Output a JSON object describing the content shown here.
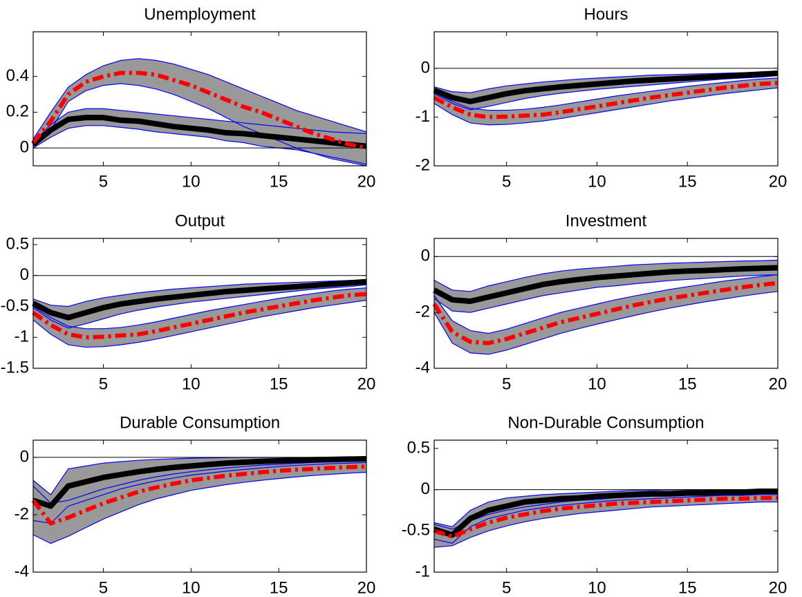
{
  "chart_data": [
    {
      "type": "line",
      "title": "Unemployment",
      "x": [
        1,
        2,
        3,
        4,
        5,
        6,
        7,
        8,
        9,
        10,
        11,
        12,
        13,
        14,
        15,
        16,
        17,
        18,
        19,
        20
      ],
      "xlim": [
        1,
        20
      ],
      "xticks": [
        5,
        10,
        15,
        20
      ],
      "ylim": [
        -0.1,
        0.65
      ],
      "yticks": [
        0,
        0.2,
        0.4
      ],
      "zero_line": true,
      "band_color": "#999999",
      "band_edge_color": "#0000ff",
      "series": [
        {
          "color": "#000000",
          "line_style": "solid",
          "values": [
            0.02,
            0.1,
            0.16,
            0.17,
            0.17,
            0.155,
            0.15,
            0.135,
            0.12,
            0.11,
            0.1,
            0.085,
            0.08,
            0.07,
            0.06,
            0.05,
            0.04,
            0.03,
            0.02,
            0.01
          ],
          "upper": [
            0.03,
            0.13,
            0.2,
            0.22,
            0.22,
            0.21,
            0.2,
            0.19,
            0.18,
            0.17,
            0.16,
            0.15,
            0.14,
            0.13,
            0.12,
            0.11,
            0.1,
            0.09,
            0.085,
            0.08
          ],
          "lower": [
            0,
            0.06,
            0.11,
            0.125,
            0.125,
            0.115,
            0.105,
            0.09,
            0.08,
            0.07,
            0.06,
            0.04,
            0.03,
            0.01,
            0,
            -0.01,
            -0.03,
            -0.05,
            -0.07,
            -0.09
          ]
        },
        {
          "color": "#ff0000",
          "line_style": "dashdot",
          "values": [
            0.03,
            0.15,
            0.3,
            0.37,
            0.4,
            0.42,
            0.42,
            0.41,
            0.38,
            0.35,
            0.31,
            0.27,
            0.23,
            0.2,
            0.16,
            0.12,
            0.08,
            0.05,
            0.02,
            0
          ],
          "upper": [
            0.05,
            0.2,
            0.34,
            0.41,
            0.46,
            0.49,
            0.5,
            0.49,
            0.47,
            0.44,
            0.41,
            0.37,
            0.33,
            0.29,
            0.25,
            0.21,
            0.18,
            0.15,
            0.12,
            0.09
          ],
          "lower": [
            0.01,
            0.1,
            0.26,
            0.32,
            0.35,
            0.36,
            0.35,
            0.33,
            0.3,
            0.26,
            0.22,
            0.17,
            0.12,
            0.08,
            0.04,
            0,
            -0.03,
            -0.06,
            -0.08,
            -0.1
          ]
        }
      ]
    },
    {
      "type": "line",
      "title": "Hours",
      "x": [
        1,
        2,
        3,
        4,
        5,
        6,
        7,
        8,
        9,
        10,
        11,
        12,
        13,
        14,
        15,
        16,
        17,
        18,
        19,
        20
      ],
      "xlim": [
        1,
        20
      ],
      "xticks": [
        5,
        10,
        15,
        20
      ],
      "ylim": [
        -2,
        0.75
      ],
      "yticks": [
        -2,
        -1,
        0
      ],
      "zero_line": true,
      "band_color": "#999999",
      "band_edge_color": "#0000ff",
      "series": [
        {
          "color": "#000000",
          "line_style": "solid",
          "values": [
            -0.45,
            -0.6,
            -0.68,
            -0.6,
            -0.52,
            -0.46,
            -0.42,
            -0.38,
            -0.35,
            -0.32,
            -0.29,
            -0.26,
            -0.24,
            -0.22,
            -0.2,
            -0.18,
            -0.16,
            -0.14,
            -0.12,
            -0.1
          ],
          "upper": [
            -0.38,
            -0.48,
            -0.5,
            -0.42,
            -0.36,
            -0.32,
            -0.28,
            -0.25,
            -0.22,
            -0.2,
            -0.18,
            -0.16,
            -0.14,
            -0.13,
            -0.12,
            -0.11,
            -0.1,
            -0.09,
            -0.08,
            -0.07
          ],
          "lower": [
            -0.52,
            -0.72,
            -0.85,
            -0.78,
            -0.7,
            -0.62,
            -0.56,
            -0.51,
            -0.47,
            -0.43,
            -0.4,
            -0.37,
            -0.34,
            -0.31,
            -0.28,
            -0.25,
            -0.22,
            -0.2,
            -0.18,
            -0.15
          ]
        },
        {
          "color": "#ff0000",
          "line_style": "dashdot",
          "values": [
            -0.6,
            -0.8,
            -0.95,
            -1.0,
            -0.99,
            -0.97,
            -0.95,
            -0.9,
            -0.84,
            -0.78,
            -0.72,
            -0.66,
            -0.6,
            -0.55,
            -0.5,
            -0.45,
            -0.4,
            -0.36,
            -0.32,
            -0.3
          ],
          "upper": [
            -0.5,
            -0.68,
            -0.82,
            -0.86,
            -0.86,
            -0.84,
            -0.8,
            -0.75,
            -0.69,
            -0.63,
            -0.57,
            -0.52,
            -0.47,
            -0.42,
            -0.37,
            -0.33,
            -0.29,
            -0.25,
            -0.22,
            -0.2
          ],
          "lower": [
            -0.72,
            -0.95,
            -1.12,
            -1.16,
            -1.15,
            -1.12,
            -1.08,
            -1.03,
            -0.97,
            -0.91,
            -0.85,
            -0.79,
            -0.73,
            -0.67,
            -0.62,
            -0.57,
            -0.52,
            -0.48,
            -0.44,
            -0.4
          ]
        }
      ]
    },
    {
      "type": "line",
      "title": "Output",
      "x": [
        1,
        2,
        3,
        4,
        5,
        6,
        7,
        8,
        9,
        10,
        11,
        12,
        13,
        14,
        15,
        16,
        17,
        18,
        19,
        20
      ],
      "xlim": [
        1,
        20
      ],
      "xticks": [
        5,
        10,
        15,
        20
      ],
      "ylim": [
        -1.5,
        0.6
      ],
      "yticks": [
        -1.5,
        -1,
        -0.5,
        0,
        0.5
      ],
      "zero_line": true,
      "band_color": "#999999",
      "band_edge_color": "#0000ff",
      "series": [
        {
          "color": "#000000",
          "line_style": "solid",
          "values": [
            -0.45,
            -0.6,
            -0.68,
            -0.6,
            -0.52,
            -0.46,
            -0.42,
            -0.38,
            -0.35,
            -0.32,
            -0.29,
            -0.26,
            -0.24,
            -0.22,
            -0.2,
            -0.18,
            -0.16,
            -0.14,
            -0.12,
            -0.1
          ],
          "upper": [
            -0.38,
            -0.48,
            -0.5,
            -0.42,
            -0.36,
            -0.32,
            -0.28,
            -0.25,
            -0.22,
            -0.2,
            -0.18,
            -0.16,
            -0.14,
            -0.13,
            -0.12,
            -0.11,
            -0.1,
            -0.09,
            -0.08,
            -0.07
          ],
          "lower": [
            -0.52,
            -0.72,
            -0.85,
            -0.78,
            -0.7,
            -0.62,
            -0.56,
            -0.51,
            -0.47,
            -0.43,
            -0.4,
            -0.37,
            -0.34,
            -0.31,
            -0.28,
            -0.25,
            -0.22,
            -0.2,
            -0.18,
            -0.15
          ]
        },
        {
          "color": "#ff0000",
          "line_style": "dashdot",
          "values": [
            -0.6,
            -0.8,
            -0.95,
            -1.0,
            -0.99,
            -0.97,
            -0.95,
            -0.9,
            -0.84,
            -0.78,
            -0.72,
            -0.66,
            -0.6,
            -0.55,
            -0.5,
            -0.45,
            -0.4,
            -0.36,
            -0.32,
            -0.3
          ],
          "upper": [
            -0.5,
            -0.68,
            -0.82,
            -0.86,
            -0.86,
            -0.84,
            -0.8,
            -0.75,
            -0.69,
            -0.63,
            -0.57,
            -0.52,
            -0.47,
            -0.42,
            -0.37,
            -0.33,
            -0.29,
            -0.25,
            -0.22,
            -0.2
          ],
          "lower": [
            -0.72,
            -0.95,
            -1.12,
            -1.16,
            -1.15,
            -1.12,
            -1.08,
            -1.03,
            -0.97,
            -0.91,
            -0.85,
            -0.79,
            -0.73,
            -0.67,
            -0.62,
            -0.57,
            -0.52,
            -0.48,
            -0.44,
            -0.4
          ]
        }
      ]
    },
    {
      "type": "line",
      "title": "Investment",
      "x": [
        1,
        2,
        3,
        4,
        5,
        6,
        7,
        8,
        9,
        10,
        11,
        12,
        13,
        14,
        15,
        16,
        17,
        18,
        19,
        20
      ],
      "xlim": [
        1,
        20
      ],
      "xticks": [
        5,
        10,
        15,
        20
      ],
      "ylim": [
        -4,
        0.65
      ],
      "yticks": [
        -4,
        -2,
        0
      ],
      "zero_line": true,
      "band_color": "#999999",
      "band_edge_color": "#0000ff",
      "series": [
        {
          "color": "#000000",
          "line_style": "solid",
          "values": [
            -1.2,
            -1.55,
            -1.6,
            -1.45,
            -1.3,
            -1.15,
            -1.0,
            -0.9,
            -0.82,
            -0.75,
            -0.7,
            -0.65,
            -0.6,
            -0.55,
            -0.52,
            -0.5,
            -0.47,
            -0.44,
            -0.42,
            -0.4
          ],
          "upper": [
            -0.85,
            -1.2,
            -1.25,
            -1.05,
            -0.9,
            -0.75,
            -0.62,
            -0.52,
            -0.45,
            -0.4,
            -0.35,
            -0.3,
            -0.27,
            -0.24,
            -0.22,
            -0.2,
            -0.18,
            -0.16,
            -0.15,
            -0.13
          ],
          "lower": [
            -1.5,
            -1.95,
            -2.0,
            -1.85,
            -1.7,
            -1.55,
            -1.4,
            -1.3,
            -1.2,
            -1.1,
            -1.05,
            -0.98,
            -0.92,
            -0.86,
            -0.82,
            -0.78,
            -0.74,
            -0.7,
            -0.67,
            -0.65
          ]
        },
        {
          "color": "#ff0000",
          "line_style": "dashdot",
          "values": [
            -1.7,
            -2.7,
            -3.05,
            -3.1,
            -2.95,
            -2.75,
            -2.55,
            -2.35,
            -2.2,
            -2.05,
            -1.9,
            -1.75,
            -1.62,
            -1.5,
            -1.4,
            -1.3,
            -1.2,
            -1.1,
            -1.02,
            -0.95
          ],
          "upper": [
            -1.4,
            -2.3,
            -2.65,
            -2.75,
            -2.6,
            -2.4,
            -2.2,
            -2.0,
            -1.85,
            -1.7,
            -1.55,
            -1.42,
            -1.3,
            -1.18,
            -1.08,
            -0.98,
            -0.88,
            -0.8,
            -0.72,
            -0.65
          ],
          "lower": [
            -2.0,
            -3.1,
            -3.45,
            -3.5,
            -3.35,
            -3.15,
            -2.95,
            -2.75,
            -2.58,
            -2.42,
            -2.27,
            -2.12,
            -1.98,
            -1.85,
            -1.73,
            -1.62,
            -1.52,
            -1.42,
            -1.33,
            -1.25
          ]
        }
      ]
    },
    {
      "type": "line",
      "title": "Durable Consumption",
      "x": [
        1,
        2,
        3,
        4,
        5,
        6,
        7,
        8,
        9,
        10,
        11,
        12,
        13,
        14,
        15,
        16,
        17,
        18,
        19,
        20
      ],
      "xlim": [
        1,
        20
      ],
      "xticks": [
        5,
        10,
        15,
        20
      ],
      "ylim": [
        -4,
        0.6
      ],
      "yticks": [
        -4,
        -2,
        0
      ],
      "zero_line": true,
      "band_color": "#999999",
      "band_edge_color": "#0000ff",
      "series": [
        {
          "color": "#000000",
          "line_style": "solid",
          "values": [
            -1.5,
            -1.7,
            -1.0,
            -0.85,
            -0.7,
            -0.6,
            -0.5,
            -0.42,
            -0.35,
            -0.3,
            -0.25,
            -0.2,
            -0.17,
            -0.14,
            -0.12,
            -0.1,
            -0.08,
            -0.07,
            -0.06,
            -0.05
          ],
          "upper": [
            -0.8,
            -1.3,
            -0.4,
            -0.3,
            -0.2,
            -0.15,
            -0.1,
            -0.07,
            -0.05,
            -0.03,
            -0.02,
            -0.01,
            0,
            0,
            0,
            0,
            0,
            0,
            0,
            0
          ],
          "lower": [
            -2.2,
            -2.3,
            -1.7,
            -1.5,
            -1.3,
            -1.1,
            -0.95,
            -0.82,
            -0.72,
            -0.62,
            -0.55,
            -0.48,
            -0.42,
            -0.37,
            -0.32,
            -0.28,
            -0.25,
            -0.22,
            -0.2,
            -0.18
          ]
        },
        {
          "color": "#ff0000",
          "line_style": "dashdot",
          "values": [
            -1.5,
            -2.3,
            -2.1,
            -1.85,
            -1.6,
            -1.4,
            -1.2,
            -1.05,
            -0.92,
            -0.8,
            -0.72,
            -0.64,
            -0.58,
            -0.52,
            -0.47,
            -0.43,
            -0.4,
            -0.37,
            -0.34,
            -0.32
          ],
          "upper": [
            -1.0,
            -1.6,
            -1.5,
            -1.3,
            -1.1,
            -0.95,
            -0.8,
            -0.68,
            -0.58,
            -0.5,
            -0.43,
            -0.37,
            -0.32,
            -0.27,
            -0.24,
            -0.21,
            -0.18,
            -0.16,
            -0.14,
            -0.12
          ],
          "lower": [
            -2.7,
            -3.0,
            -2.75,
            -2.45,
            -2.15,
            -1.9,
            -1.65,
            -1.45,
            -1.3,
            -1.15,
            -1.05,
            -0.95,
            -0.87,
            -0.8,
            -0.74,
            -0.68,
            -0.63,
            -0.59,
            -0.55,
            -0.52
          ]
        }
      ]
    },
    {
      "type": "line",
      "title": "Non-Durable Consumption",
      "x": [
        1,
        2,
        3,
        4,
        5,
        6,
        7,
        8,
        9,
        10,
        11,
        12,
        13,
        14,
        15,
        16,
        17,
        18,
        19,
        20
      ],
      "xlim": [
        1,
        20
      ],
      "xticks": [
        5,
        10,
        15,
        20
      ],
      "ylim": [
        -1,
        0.6
      ],
      "yticks": [
        -1,
        -0.5,
        0,
        0.5
      ],
      "zero_line": true,
      "band_color": "#999999",
      "band_edge_color": "#0000ff",
      "series": [
        {
          "color": "#000000",
          "line_style": "solid",
          "values": [
            -0.48,
            -0.55,
            -0.35,
            -0.25,
            -0.2,
            -0.15,
            -0.13,
            -0.11,
            -0.1,
            -0.08,
            -0.07,
            -0.06,
            -0.05,
            -0.05,
            -0.04,
            -0.04,
            -0.03,
            -0.03,
            -0.02,
            -0.02
          ],
          "upper": [
            -0.4,
            -0.45,
            -0.25,
            -0.15,
            -0.1,
            -0.08,
            -0.06,
            -0.05,
            -0.04,
            -0.03,
            -0.02,
            -0.01,
            -0.01,
            0,
            0,
            0,
            0,
            0,
            0,
            0
          ],
          "lower": [
            -0.6,
            -0.65,
            -0.45,
            -0.35,
            -0.3,
            -0.25,
            -0.22,
            -0.19,
            -0.17,
            -0.15,
            -0.13,
            -0.12,
            -0.11,
            -0.1,
            -0.09,
            -0.08,
            -0.07,
            -0.07,
            -0.06,
            -0.06
          ]
        },
        {
          "color": "#ff0000",
          "line_style": "dashdot",
          "values": [
            -0.5,
            -0.57,
            -0.48,
            -0.4,
            -0.34,
            -0.3,
            -0.26,
            -0.23,
            -0.21,
            -0.19,
            -0.17,
            -0.16,
            -0.15,
            -0.14,
            -0.13,
            -0.12,
            -0.11,
            -0.11,
            -0.1,
            -0.1
          ],
          "upper": [
            -0.42,
            -0.48,
            -0.38,
            -0.3,
            -0.25,
            -0.21,
            -0.18,
            -0.15,
            -0.13,
            -0.12,
            -0.1,
            -0.09,
            -0.08,
            -0.08,
            -0.07,
            -0.07,
            -0.06,
            -0.06,
            -0.05,
            -0.05
          ],
          "lower": [
            -0.7,
            -0.68,
            -0.58,
            -0.5,
            -0.44,
            -0.39,
            -0.35,
            -0.32,
            -0.29,
            -0.27,
            -0.25,
            -0.23,
            -0.21,
            -0.2,
            -0.19,
            -0.18,
            -0.17,
            -0.16,
            -0.15,
            -0.15
          ]
        }
      ]
    }
  ]
}
